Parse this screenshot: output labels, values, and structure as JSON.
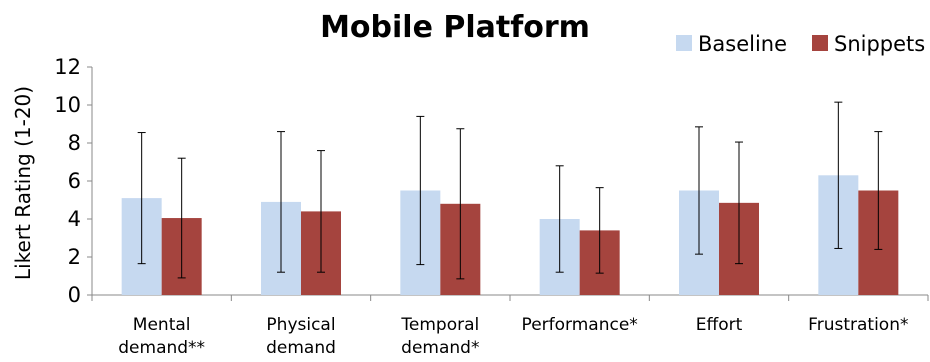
{
  "chart_data": {
    "type": "bar",
    "title": "Mobile Platform",
    "ylabel": "Likert Rating (1-20)",
    "xlabel": "",
    "ylim": [
      0,
      12
    ],
    "yticks": [
      "0",
      "2",
      "4",
      "6",
      "8",
      "10",
      "12"
    ],
    "grid": false,
    "legend_position": "top-right",
    "categories": [
      [
        "Mental",
        "demand**"
      ],
      [
        "Physical",
        "demand"
      ],
      [
        "Temporal",
        "demand*"
      ],
      [
        "Performance*"
      ],
      [
        "Effort"
      ],
      [
        "Frustration*"
      ]
    ],
    "series": [
      {
        "name": "Baseline",
        "color": "#c6d9f0",
        "values": [
          5.1,
          4.9,
          5.5,
          4.0,
          5.5,
          6.3
        ],
        "error": [
          3.45,
          3.7,
          3.9,
          2.8,
          3.35,
          3.85
        ]
      },
      {
        "name": "Snippets",
        "color": "#a5443e",
        "values": [
          4.05,
          4.4,
          4.8,
          3.4,
          4.85,
          5.5
        ],
        "error": [
          3.15,
          3.2,
          3.95,
          2.25,
          3.2,
          3.1
        ]
      }
    ]
  }
}
